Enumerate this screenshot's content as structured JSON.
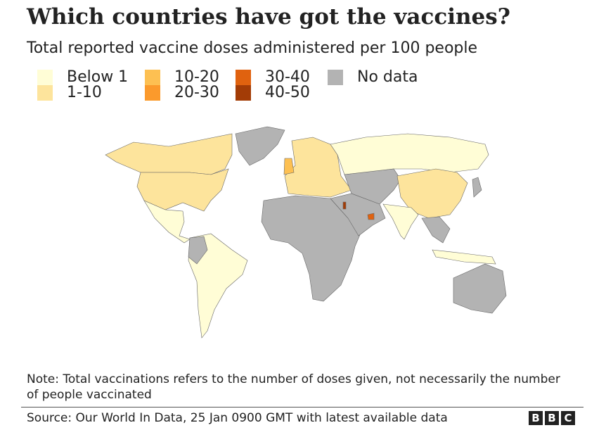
{
  "header": {
    "title": "Which countries have got the vaccines?",
    "subtitle": "Total reported vaccine doses administered per 100 people"
  },
  "legend": [
    {
      "label": "Below 1",
      "color": "#fffdd6"
    },
    {
      "label": "1-10",
      "color": "#fde49c"
    },
    {
      "label": "10-20",
      "color": "#fdc052"
    },
    {
      "label": "20-30",
      "color": "#fb9a2c"
    },
    {
      "label": "30-40",
      "color": "#e0620f"
    },
    {
      "label": "40-50",
      "color": "#a33c06"
    },
    {
      "label": "No data",
      "color": "#b3b3b3"
    }
  ],
  "regions": [
    {
      "name": "canada",
      "category": "1-10"
    },
    {
      "name": "usa",
      "category": "1-10"
    },
    {
      "name": "greenland",
      "category": "No data"
    },
    {
      "name": "mexico-central-america",
      "category": "Below 1"
    },
    {
      "name": "south-america",
      "category": "Below 1"
    },
    {
      "name": "europe",
      "category": "1-10"
    },
    {
      "name": "uk",
      "category": "10-20"
    },
    {
      "name": "russia",
      "category": "Below 1"
    },
    {
      "name": "central-asia",
      "category": "No data"
    },
    {
      "name": "china",
      "category": "1-10"
    },
    {
      "name": "india",
      "category": "Below 1"
    },
    {
      "name": "africa",
      "category": "No data"
    },
    {
      "name": "middle-east",
      "category": "No data"
    },
    {
      "name": "uae",
      "category": "30-40"
    },
    {
      "name": "israel",
      "category": "40-50"
    },
    {
      "name": "southeast-asia",
      "category": "No data"
    },
    {
      "name": "indonesia",
      "category": "Below 1"
    },
    {
      "name": "australia",
      "category": "No data"
    }
  ],
  "footer": {
    "note": "Note: Total vaccinations refers to the number of doses given, not necessarily the number of people vaccinated",
    "source": "Source: Our World In Data, 25 Jan 0900 GMT with latest available data",
    "logo": [
      "B",
      "B",
      "C"
    ]
  }
}
